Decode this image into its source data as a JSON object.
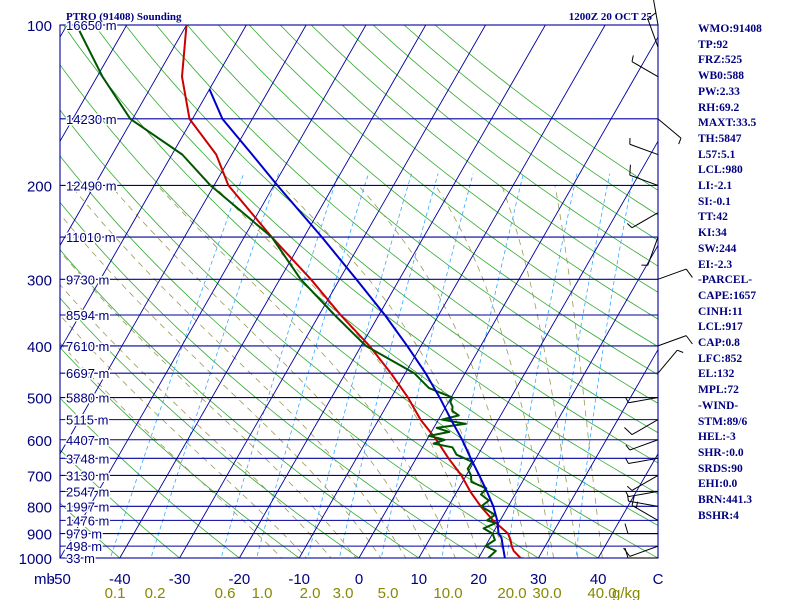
{
  "header": {
    "title": "PTRO (91408) Sounding",
    "timestamp": "1200Z 20 OCT 25"
  },
  "colors": {
    "isobar": "#0000a0",
    "dry_adiabat": "#33aa33",
    "isotherm": "#0000a0",
    "moist_adiabat": "#9a9a55",
    "mixing_ratio": "#33aaff",
    "temperature": "#cc0000",
    "dewpoint": "#005500",
    "parcel": "#0000cc",
    "wind_barb": "#000000",
    "label": "#000080",
    "mixing_label": "#888800"
  },
  "chart_data": {
    "type": "line",
    "title": "PTRO (91408) Sounding",
    "subtitle": "1200Z 20 OCT 25",
    "xlabel": "°C / g/kg",
    "ylabel": "mb",
    "plim_mb": [
      1000,
      100
    ],
    "tlim_c": [
      -50,
      50
    ],
    "pressure_ticks": [
      "100",
      "200",
      "300",
      "400",
      "500",
      "600",
      "700",
      "800",
      "900",
      "1000"
    ],
    "pressure_tick_values": [
      100,
      200,
      300,
      400,
      500,
      600,
      700,
      800,
      900,
      1000
    ],
    "temp_ticks": [
      "-50",
      "-40",
      "-30",
      "-20",
      "-10",
      "0",
      "10",
      "20",
      "30",
      "40",
      "C"
    ],
    "temp_tick_values": [
      -50,
      -40,
      -30,
      -20,
      -10,
      0,
      10,
      20,
      30,
      40,
      50
    ],
    "heights": [
      {
        "p": 100,
        "label": "16650 m"
      },
      {
        "p": 150,
        "label": "14230 m"
      },
      {
        "p": 200,
        "label": "12490 m"
      },
      {
        "p": 250,
        "label": "11010 m"
      },
      {
        "p": 300,
        "label": "9730 m"
      },
      {
        "p": 350,
        "label": "8594 m"
      },
      {
        "p": 400,
        "label": "7610 m"
      },
      {
        "p": 450,
        "label": "6697 m"
      },
      {
        "p": 500,
        "label": "5880 m"
      },
      {
        "p": 550,
        "label": "5115 m"
      },
      {
        "p": 600,
        "label": "4407 m"
      },
      {
        "p": 650,
        "label": "3748 m"
      },
      {
        "p": 700,
        "label": "3130 m"
      },
      {
        "p": 750,
        "label": "2547 m"
      },
      {
        "p": 800,
        "label": "1997 m"
      },
      {
        "p": 850,
        "label": "1476 m"
      },
      {
        "p": 900,
        "label": "979 m"
      },
      {
        "p": 950,
        "label": "498 m"
      },
      {
        "p": 1000,
        "label": "33 m"
      }
    ],
    "mixing_ratio_labels": [
      "0.1",
      "0.2",
      "0.6",
      "1.0",
      "2.0",
      "3.0",
      "5.0",
      "10.0",
      "20.0",
      "30.0",
      "40.0"
    ],
    "mixing_ratio_values": [
      0.1,
      0.2,
      0.6,
      1.0,
      2.0,
      3.0,
      5.0,
      10.0,
      20.0,
      30.0,
      40.0
    ],
    "mixing_ratio_unit": "g/kg",
    "series": [
      {
        "name": "temperature",
        "p": [
          1008,
          1000,
          970,
          950,
          925,
          900,
          850,
          800,
          750,
          700,
          650,
          600,
          550,
          500,
          450,
          400,
          350,
          300,
          250,
          200,
          175,
          150,
          125,
          100
        ],
        "t": [
          29.8,
          27,
          25.2,
          24.4,
          23.6,
          22.6,
          18.8,
          15.4,
          12.2,
          9.2,
          5.4,
          1.6,
          -3,
          -7.2,
          -12.4,
          -18.6,
          -26.4,
          -34.8,
          -45.4,
          -57.6,
          -62.6,
          -70.5,
          -75.8,
          -80
        ]
      },
      {
        "name": "dewpoint",
        "p": [
          1008,
          1000,
          970,
          950,
          925,
          900,
          880,
          860,
          850,
          830,
          800,
          780,
          760,
          740,
          720,
          700,
          680,
          660,
          640,
          620,
          610,
          600,
          590,
          580,
          570,
          560,
          550,
          540,
          530,
          520,
          510,
          500,
          480,
          450,
          400,
          350,
          300,
          250,
          200,
          175,
          150,
          125,
          100
        ],
        "t": [
          22,
          21.6,
          22.2,
          20,
          21,
          20,
          18,
          19.5,
          17.8,
          18.6,
          15.5,
          16.2,
          14.3,
          14.6,
          11.5,
          10.8,
          9.6,
          9.7,
          6.4,
          5,
          1.5,
          3,
          0,
          3,
          0.5,
          5,
          0.6,
          3,
          1.5,
          1.1,
          0.3,
          0.2,
          -4.6,
          -8.5,
          -19.2,
          -27.4,
          -36.5,
          -45.4,
          -60.6,
          -68.3,
          -80.4,
          -89.1,
          -98.4
        ]
      },
      {
        "name": "parcel",
        "p": [
          1000,
          950,
          917,
          900,
          850,
          800,
          750,
          700,
          650,
          600,
          550,
          500,
          450,
          400,
          350,
          300,
          250,
          200,
          175,
          150,
          132
        ],
        "t": [
          24.4,
          22.9,
          21.9,
          21,
          19.5,
          17.5,
          15,
          12.2,
          9.1,
          5.9,
          2.1,
          -1.9,
          -6.6,
          -12.3,
          -19,
          -27.2,
          -37,
          -49.4,
          -56.6,
          -65,
          -70
        ]
      }
    ],
    "wind_barbs": [
      {
        "p": 1000,
        "dir": 270,
        "kt": 10
      },
      {
        "p": 950,
        "dir": 250,
        "kt": 10
      },
      {
        "p": 900,
        "dir": 270,
        "kt": 10
      },
      {
        "p": 850,
        "dir": 300,
        "kt": 15
      },
      {
        "p": 800,
        "dir": 280,
        "kt": 5
      },
      {
        "p": 750,
        "dir": 260,
        "kt": 5
      },
      {
        "p": 700,
        "dir": 240,
        "kt": 5
      },
      {
        "p": 650,
        "dir": 260,
        "kt": 5
      },
      {
        "p": 600,
        "dir": 250,
        "kt": 5
      },
      {
        "p": 550,
        "dir": 240,
        "kt": 10
      },
      {
        "p": 500,
        "dir": 260,
        "kt": 5
      },
      {
        "p": 450,
        "dir": 40,
        "kt": 5
      },
      {
        "p": 400,
        "dir": 70,
        "kt": 10
      },
      {
        "p": 300,
        "dir": 70,
        "kt": 10
      },
      {
        "p": 250,
        "dir": 200,
        "kt": 5
      },
      {
        "p": 225,
        "dir": 240,
        "kt": 5
      },
      {
        "p": 200,
        "dir": 290,
        "kt": 10
      },
      {
        "p": 175,
        "dir": 290,
        "kt": 5
      },
      {
        "p": 150,
        "dir": 130,
        "kt": 5
      },
      {
        "p": 125,
        "dir": 300,
        "kt": 5
      },
      {
        "p": 110,
        "dir": 340,
        "kt": 10
      },
      {
        "p": 100,
        "dir": 350,
        "kt": 5
      }
    ]
  },
  "indices": [
    "WMO:91408",
    "TP:92",
    "FRZ:525",
    "WB0:588",
    "PW:2.33",
    "RH:69.2",
    "MAXT:33.5",
    "TH:5847",
    "L57:5.1",
    "LCL:980",
    "LI:-2.1",
    "SI:-0.1",
    "TT:42",
    "KI:34",
    "SW:244",
    "EI:-2.3",
    "-PARCEL-",
    "CAPE:1657",
    "CINH:11",
    "LCL:917",
    "CAP:0.8",
    "LFC:852",
    "EL:132",
    "MPL:72",
    "-WIND-",
    "STM:89/6",
    "HEL:-3",
    "SHR-:0.0",
    "SRDS:90",
    "EHI:0.0",
    "BRN:441.3",
    "BSHR:4"
  ]
}
